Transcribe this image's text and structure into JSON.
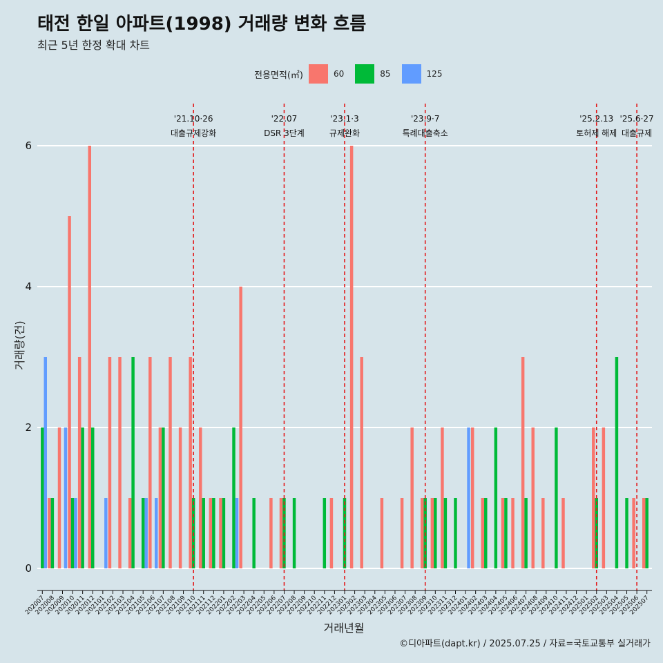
{
  "header": {
    "title": "태전 한일 아파트(1998) 거래량 변화 흐름",
    "subtitle": "최근 5년 한정 확대 차트"
  },
  "caption": "©디아파트(dapt.kr) / 2025.07.25 / 자료=국토교통부 실거래가",
  "chart_data": {
    "type": "bar",
    "xlabel": "거래년월",
    "ylabel": "거래량(건)",
    "ylim": [
      0,
      6
    ],
    "yticks": [
      0,
      2,
      4,
      6
    ],
    "grid": true,
    "legend": {
      "title": "전용면적(㎡)",
      "placement": "top",
      "entries": [
        {
          "name": "60",
          "color": "#f8766d"
        },
        {
          "name": "85",
          "color": "#00ba38"
        },
        {
          "name": "125",
          "color": "#619cff"
        }
      ]
    },
    "categories": [
      "202007",
      "202008",
      "202009",
      "202010",
      "202011",
      "202012",
      "202101",
      "202102",
      "202103",
      "202104",
      "202105",
      "202106",
      "202107",
      "202108",
      "202109",
      "202110",
      "202111",
      "202112",
      "202201",
      "202202",
      "202203",
      "202204",
      "202205",
      "202206",
      "202207",
      "202208",
      "202209",
      "202210",
      "202211",
      "202212",
      "202301",
      "202302",
      "202303",
      "202304",
      "202305",
      "202306",
      "202307",
      "202308",
      "202309",
      "202310",
      "202311",
      "202312",
      "202401",
      "202402",
      "202403",
      "202404",
      "202405",
      "202406",
      "202407",
      "202408",
      "202409",
      "202410",
      "202411",
      "202412",
      "202501",
      "202502",
      "202503",
      "202504",
      "202505",
      "202506",
      "202507"
    ],
    "series": [
      {
        "name": "60",
        "values": [
          0,
          1,
          2,
          5,
          3,
          6,
          0,
          3,
          3,
          1,
          0,
          3,
          2,
          3,
          2,
          3,
          2,
          1,
          1,
          0,
          4,
          0,
          0,
          1,
          1,
          0,
          0,
          0,
          0,
          1,
          0,
          6,
          3,
          0,
          1,
          0,
          1,
          2,
          1,
          1,
          2,
          0,
          0,
          2,
          1,
          0,
          1,
          1,
          3,
          2,
          1,
          0,
          1,
          0,
          0,
          2,
          2,
          0,
          0,
          1,
          1
        ]
      },
      {
        "name": "85",
        "values": [
          2,
          1,
          0,
          1,
          2,
          2,
          0,
          0,
          0,
          3,
          1,
          0,
          2,
          0,
          0,
          1,
          1,
          1,
          1,
          2,
          0,
          1,
          0,
          0,
          1,
          1,
          0,
          0,
          1,
          0,
          1,
          0,
          0,
          0,
          0,
          0,
          0,
          0,
          1,
          1,
          1,
          1,
          0,
          0,
          1,
          2,
          1,
          0,
          1,
          0,
          0,
          2,
          0,
          0,
          0,
          1,
          0,
          3,
          1,
          0,
          1
        ]
      },
      {
        "name": "125",
        "values": [
          3,
          0,
          2,
          1,
          0,
          0,
          1,
          0,
          0,
          0,
          1,
          1,
          0,
          0,
          0,
          0,
          0,
          0,
          0,
          1,
          0,
          0,
          0,
          0,
          0,
          0,
          0,
          0,
          0,
          0,
          0,
          0,
          0,
          0,
          0,
          0,
          0,
          0,
          0,
          0,
          0,
          0,
          2,
          0,
          0,
          0,
          0,
          0,
          0,
          0,
          0,
          0,
          0,
          0,
          0,
          0,
          0,
          0,
          0,
          0,
          0
        ]
      }
    ],
    "annotations": [
      {
        "x": "202110",
        "date": "'21.10·26",
        "label": "대출규제강화"
      },
      {
        "x": "202207",
        "date": "'22.07",
        "label": "DSR 3단계"
      },
      {
        "x": "202301",
        "date": "'23.1·3",
        "label": "규제완화"
      },
      {
        "x": "202309",
        "date": "'23.9·7",
        "label": "특례대출축소"
      },
      {
        "x": "202502",
        "date": "'25.2.13",
        "label": "토허제 해제"
      },
      {
        "x": "202506",
        "date": "'25.6·27",
        "label": "대출규제"
      }
    ]
  }
}
